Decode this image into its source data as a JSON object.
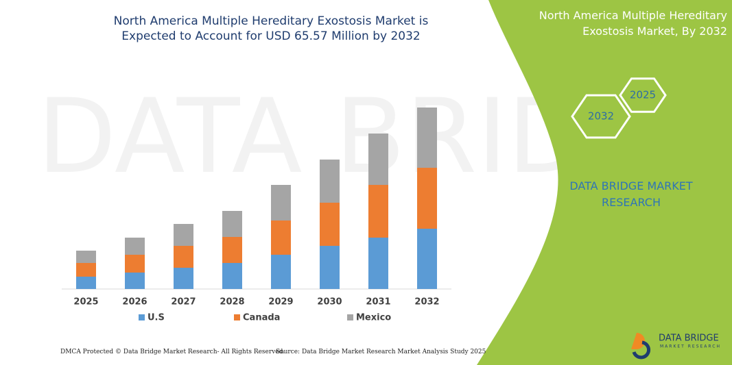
{
  "chart_data": {
    "type": "bar",
    "stacked": true,
    "title": "North America Multiple Hereditary Exostosis Market is Expected to Account for USD 65.57 Million by 2032",
    "categories": [
      "2025",
      "2026",
      "2027",
      "2028",
      "2029",
      "2030",
      "2031",
      "2032"
    ],
    "series": [
      {
        "name": "U.S",
        "color": "#5b9bd5",
        "values": [
          18,
          24,
          31,
          38,
          50,
          63,
          75,
          88
        ]
      },
      {
        "name": "Canada",
        "color": "#ed7d31",
        "values": [
          20,
          26,
          32,
          38,
          50,
          63,
          77,
          89
        ]
      },
      {
        "name": "Mexico",
        "color": "#a5a5a5",
        "values": [
          18,
          25,
          32,
          38,
          52,
          63,
          75,
          88
        ]
      }
    ],
    "ylim": [
      0,
      265
    ]
  },
  "panel": {
    "title": "North America Multiple Hereditary Exostosis Market, By 2032",
    "hexagons": [
      "2025",
      "2032"
    ],
    "brand": "DATA BRIDGE MARKET RESEARCH"
  },
  "footer": {
    "left": "DMCA Protected © Data Bridge Market Research- All Rights Reserved.",
    "right": "Source: Data Bridge Market Research Market Analysis Study 2025"
  },
  "logo": {
    "name": "DATA BRIDGE",
    "tagline": "MARKET RESEARCH"
  }
}
